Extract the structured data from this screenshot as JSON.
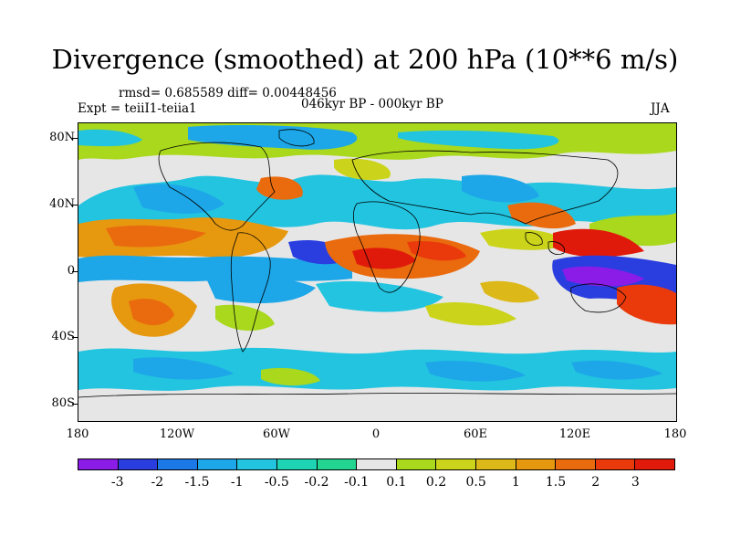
{
  "title": "Divergence (smoothed) at 200 hPa (10**6 m/s)",
  "stats": "rmsd= 0.685589 diff= 0.00448456",
  "experiment": "Expt = teiiI1-teiia1",
  "period": "046kyr BP - 000kyr BP",
  "season": "JJA",
  "map": {
    "y_ticks": [
      "80N",
      "40N",
      "0",
      "40S",
      "80S"
    ],
    "x_ticks": [
      "180",
      "120W",
      "60W",
      "0",
      "60E",
      "120E",
      "180"
    ]
  },
  "colorbar": {
    "colors": [
      "#8b1ce8",
      "#2a3ee0",
      "#1c78e6",
      "#1da7e8",
      "#22c4e0",
      "#1ed4b4",
      "#22d691",
      "#e6e6e6",
      "#a9d81c",
      "#cbd41a",
      "#dcb818",
      "#e6980e",
      "#ea6a0e",
      "#ea3a0c",
      "#e01a0a"
    ],
    "labels": [
      "-3",
      "-2",
      "-1.5",
      "-1",
      "-0.5",
      "-0.2",
      "-0.1",
      "0.1",
      "0.2",
      "0.5",
      "1",
      "1.5",
      "2",
      "3"
    ]
  }
}
